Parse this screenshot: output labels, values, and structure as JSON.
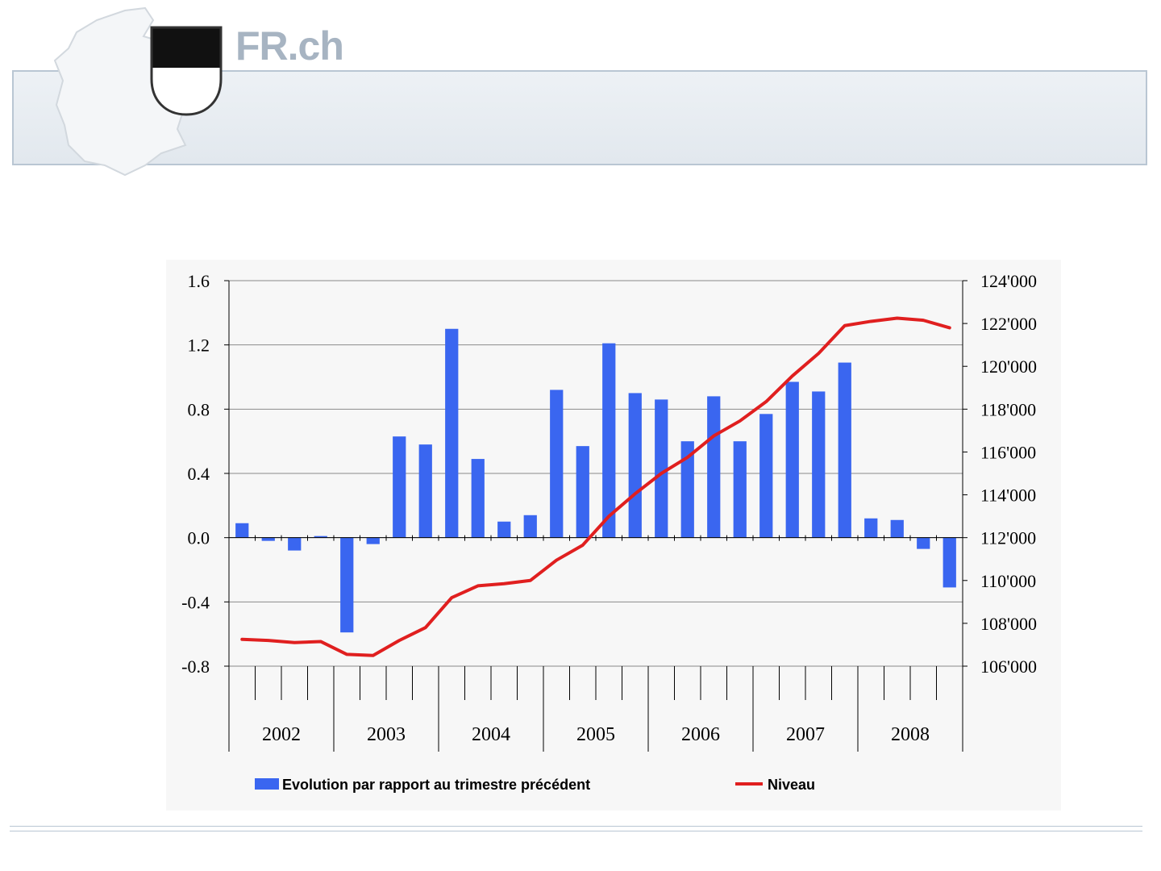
{
  "site": {
    "name": "FR.ch"
  },
  "icons": {
    "map": "canton-map-silhouette",
    "crest": "fribourg-crest"
  },
  "colors": {
    "bar": "#3a66f0",
    "line": "#e01f1f",
    "grid": "#8a8a8a",
    "header_text": "#a7b4c2"
  },
  "chart_data": {
    "type": "bar+line",
    "years": [
      "2002",
      "2003",
      "2004",
      "2005",
      "2006",
      "2007",
      "2008"
    ],
    "quarters_per_year": 4,
    "left_axis": {
      "ylim": [
        -0.8,
        1.6
      ],
      "ticks": [
        -0.8,
        -0.4,
        0.0,
        0.4,
        0.8,
        1.2,
        1.6
      ],
      "tick_labels": [
        "-0.8",
        "-0.4",
        "0.0",
        "0.4",
        "0.8",
        "1.2",
        "1.6"
      ]
    },
    "right_axis": {
      "ylim": [
        106000,
        124000
      ],
      "ticks": [
        106000,
        108000,
        110000,
        112000,
        114000,
        116000,
        118000,
        120000,
        122000,
        124000
      ],
      "tick_labels": [
        "106'000",
        "108'000",
        "110'000",
        "112'000",
        "114'000",
        "116'000",
        "118'000",
        "120'000",
        "122'000",
        "124'000"
      ]
    },
    "series": [
      {
        "name": "Evolution par rapport au trimestre précédent",
        "type": "bar",
        "axis": "left",
        "values": [
          0.09,
          -0.02,
          -0.08,
          0.01,
          -0.59,
          -0.04,
          0.63,
          0.58,
          1.3,
          0.49,
          0.1,
          0.14,
          0.92,
          0.57,
          1.21,
          0.9,
          0.86,
          0.6,
          0.88,
          0.6,
          0.77,
          0.97,
          0.91,
          1.09,
          0.12,
          0.11,
          -0.07,
          -0.31
        ]
      },
      {
        "name": "Niveau",
        "type": "line",
        "axis": "right",
        "values": [
          107250,
          107200,
          107100,
          107150,
          106550,
          106500,
          107200,
          107800,
          109200,
          109750,
          109850,
          110000,
          110950,
          111650,
          113000,
          114050,
          115000,
          115750,
          116750,
          117450,
          118350,
          119550,
          120600,
          121900,
          122100,
          122250,
          122150,
          121800
        ]
      }
    ],
    "grid": true,
    "legend_position": "bottom"
  }
}
